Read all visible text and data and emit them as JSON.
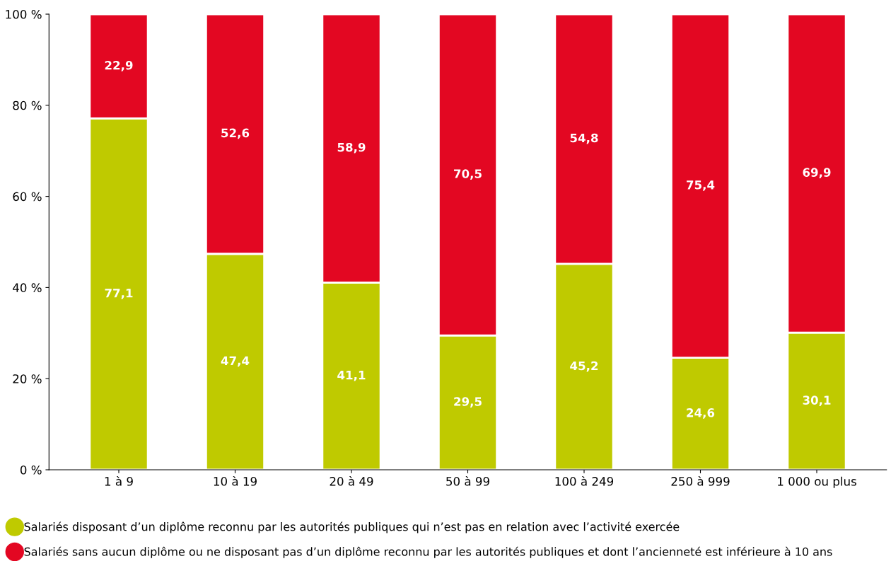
{
  "chart_data": {
    "type": "bar",
    "stacked": true,
    "categories": [
      "1 à 9",
      "10 à 19",
      "20 à 49",
      "50 à 99",
      "100 à 249",
      "250 à 999",
      "1 000 ou plus"
    ],
    "series": [
      {
        "name": "Salariés disposant d’un diplôme reconnu par les autorités publiques qui n’est pas en relation avec l’activité exercée",
        "color": "#bfca00",
        "values": [
          77.1,
          47.4,
          41.1,
          29.5,
          45.2,
          24.6,
          30.1
        ],
        "value_labels": [
          "77,1",
          "47,4",
          "41,1",
          "29,5",
          "45,2",
          "24,6",
          "30,1"
        ]
      },
      {
        "name": "Salariés sans aucun diplôme ou ne disposant pas d’un diplôme reconnu par les autorités publiques et dont l’ancienneté est inférieure à 10 ans",
        "color": "#e30722",
        "values": [
          22.9,
          52.6,
          58.9,
          70.5,
          54.8,
          75.4,
          69.9
        ],
        "value_labels": [
          "22,9",
          "52,6",
          "58,9",
          "70,5",
          "54,8",
          "75,4",
          "69,9"
        ]
      }
    ],
    "ylim": [
      0,
      100
    ],
    "yticks": [
      {
        "value": 0,
        "label": "0 %"
      },
      {
        "value": 20,
        "label": "20 %"
      },
      {
        "value": 40,
        "label": "40 %"
      },
      {
        "value": 60,
        "label": "60 %"
      },
      {
        "value": 80,
        "label": "80 %"
      },
      {
        "value": 100,
        "label": "100 %"
      }
    ],
    "grid": false,
    "legend": "bottom left"
  }
}
